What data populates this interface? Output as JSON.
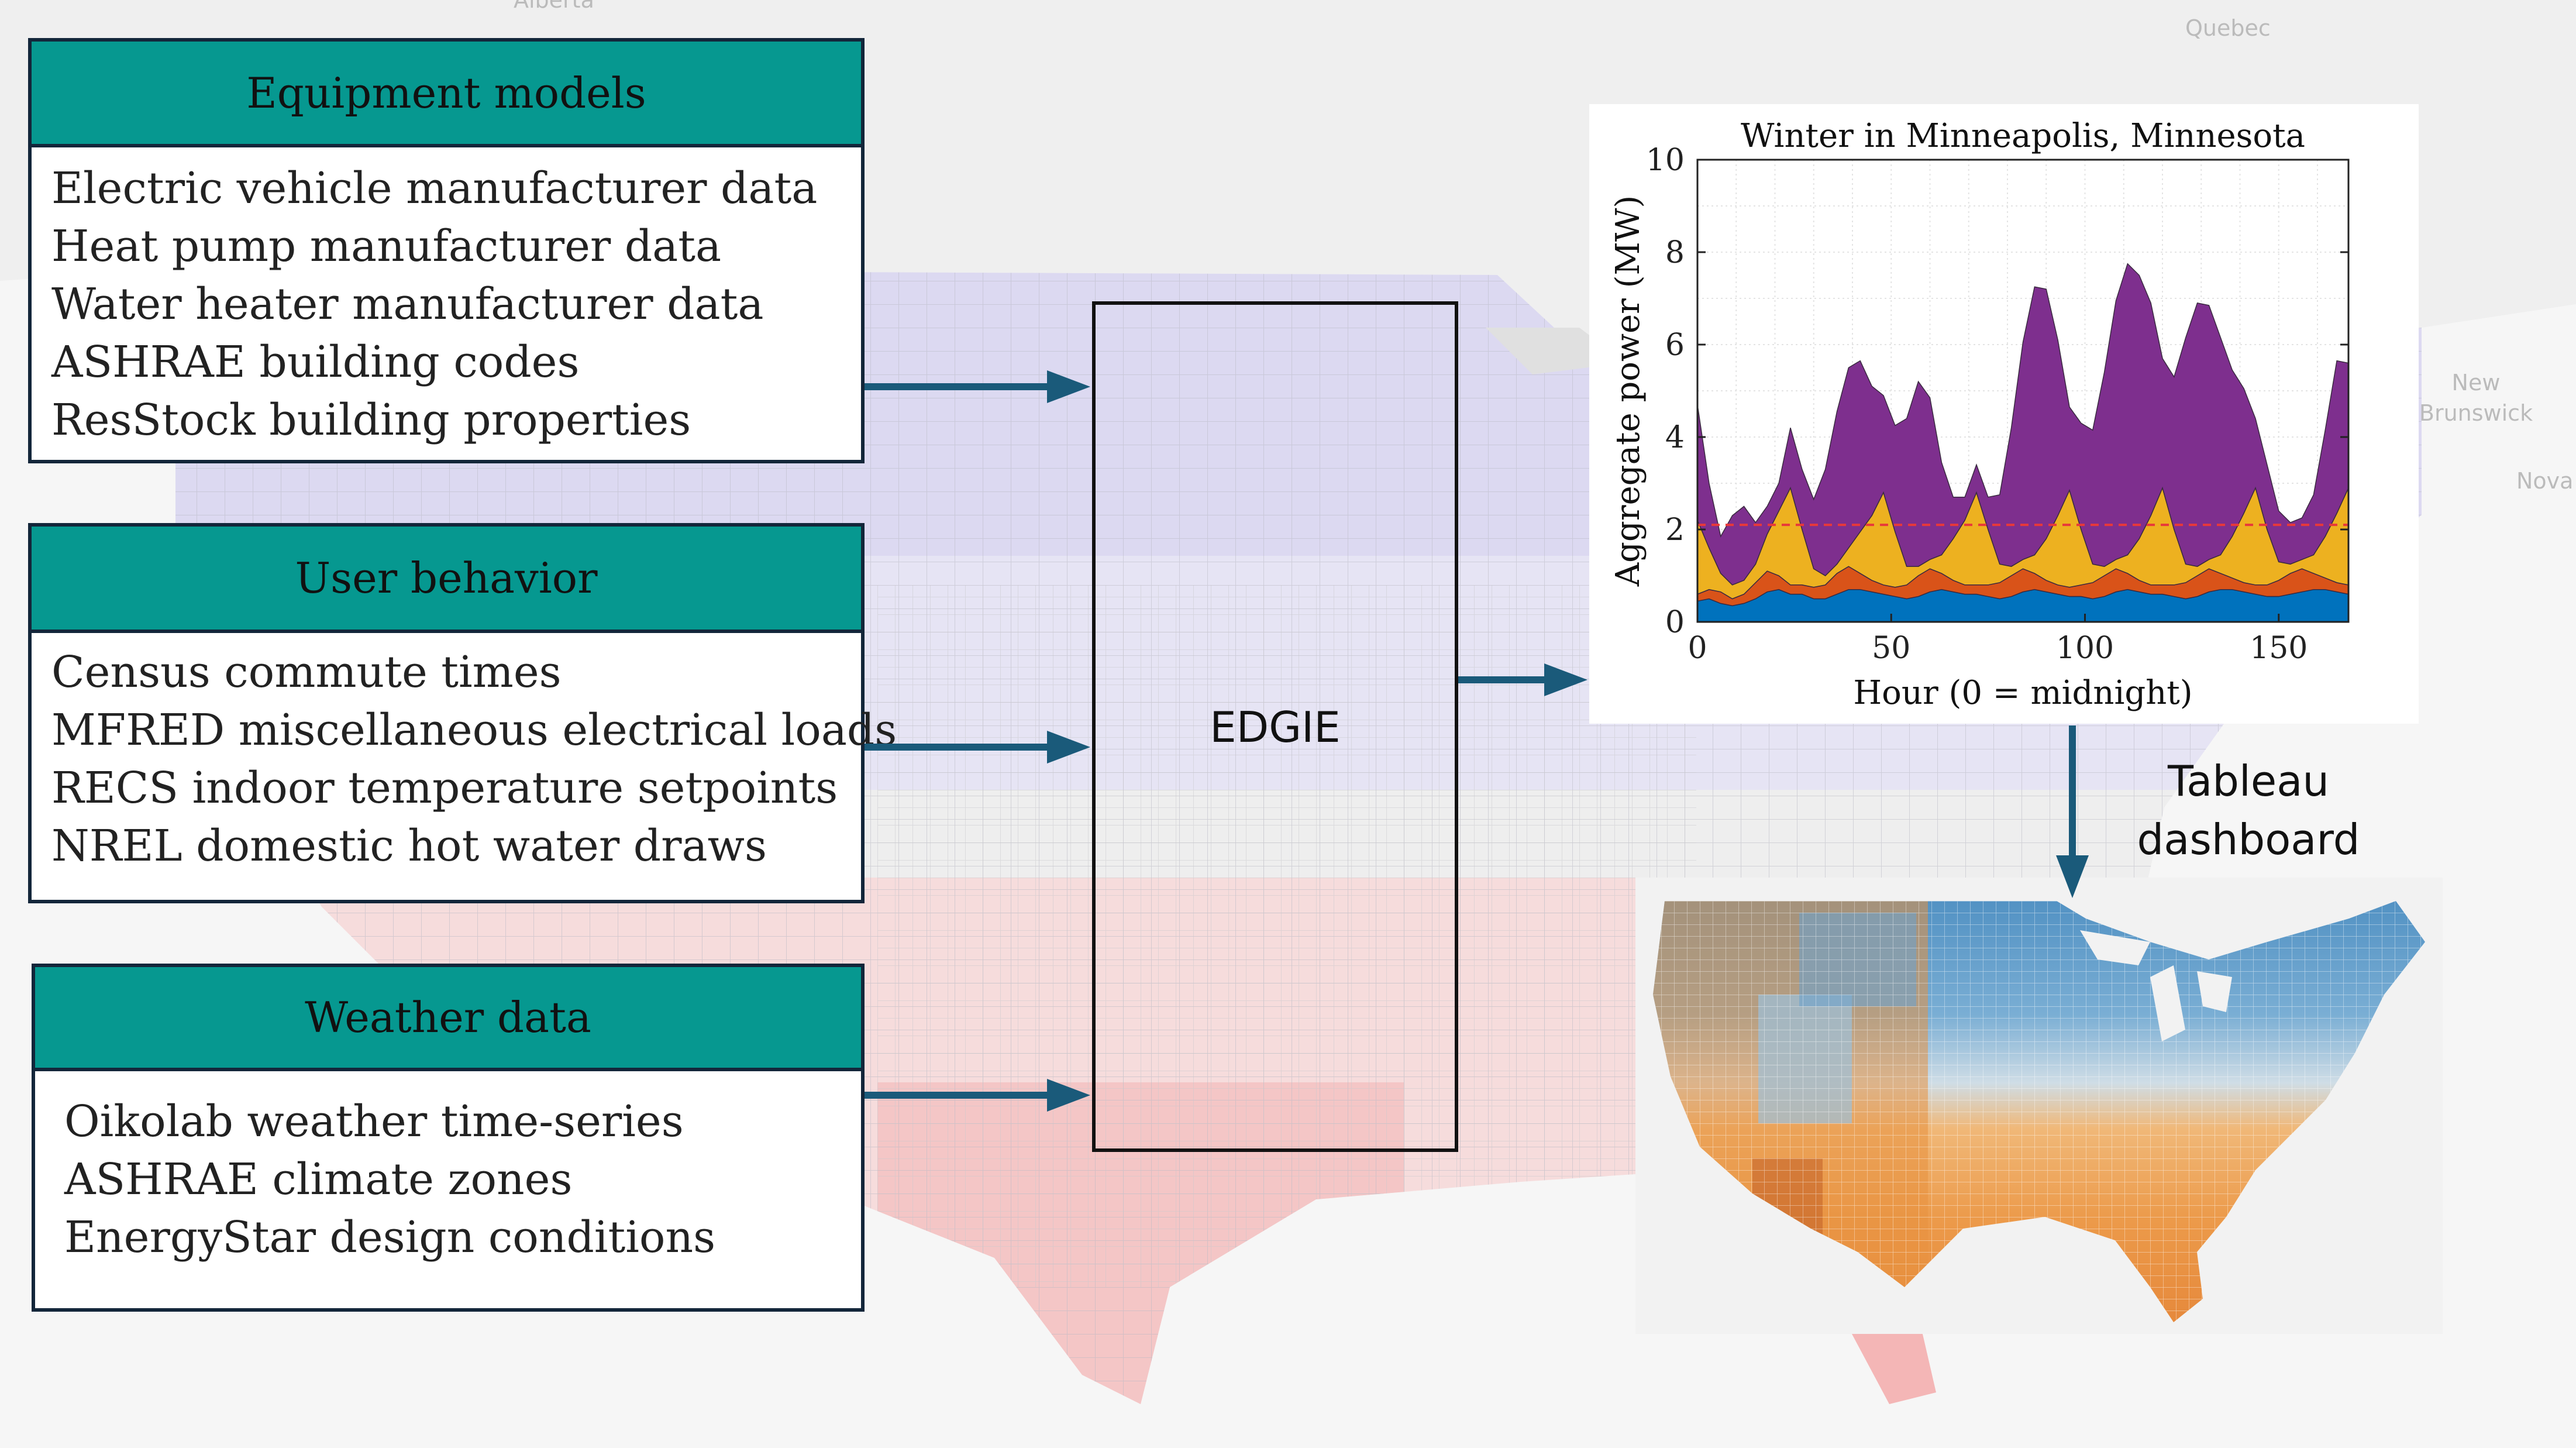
{
  "background_map": {
    "place_labels": [
      "Alberta",
      "Quebec",
      "New Brunswick",
      "Nova"
    ]
  },
  "boxes": {
    "equipment": {
      "header": "Equipment models",
      "items": [
        "Electric vehicle manufacturer data",
        "Heat pump manufacturer data",
        "Water heater manufacturer data",
        "ASHRAE building codes",
        "ResStock building properties"
      ]
    },
    "behavior": {
      "header": "User behavior",
      "items": [
        "Census commute times",
        "MFRED miscellaneous electrical loads",
        "RECS indoor temperature setpoints",
        "NREL domestic hot water draws"
      ]
    },
    "weather": {
      "header": "Weather data",
      "items": [
        "Oikolab weather time-series",
        "ASHRAE climate zones",
        "EnergyStar design conditions"
      ]
    }
  },
  "center": {
    "label": "EDGIE"
  },
  "tableau": {
    "label_line1": "Tableau",
    "label_line2": "dashboard"
  },
  "colors": {
    "header_teal": "#069890",
    "box_border": "#13263a",
    "arrow": "#1a5a7a",
    "series_base": "#0072bd",
    "series_2": "#d95319",
    "series_3": "#edb120",
    "series_4": "#7e2f8e",
    "threshold": "#e8393a"
  },
  "chart_data": {
    "type": "area",
    "title": "Winter in Minneapolis, Minnesota",
    "xlabel": "Hour (0 = midnight)",
    "ylabel": "Aggregate power (MW)",
    "xlim": [
      0,
      168
    ],
    "ylim": [
      0,
      10
    ],
    "xticks": [
      0,
      50,
      100,
      150
    ],
    "yticks": [
      0,
      2,
      4,
      6,
      8,
      10
    ],
    "grid": true,
    "stacked": true,
    "threshold_line": 2.1,
    "x": [
      0,
      3,
      6,
      9,
      12,
      15,
      18,
      21,
      24,
      27,
      30,
      33,
      36,
      39,
      42,
      45,
      48,
      51,
      54,
      57,
      60,
      63,
      66,
      69,
      72,
      75,
      78,
      81,
      84,
      87,
      90,
      93,
      96,
      99,
      102,
      105,
      108,
      111,
      114,
      117,
      120,
      123,
      126,
      129,
      132,
      135,
      138,
      141,
      144,
      147,
      150,
      153,
      156,
      159,
      162,
      165,
      168
    ],
    "series": [
      {
        "values": [
          0.45,
          0.5,
          0.4,
          0.35,
          0.4,
          0.5,
          0.65,
          0.7,
          0.6,
          0.6,
          0.5,
          0.5,
          0.6,
          0.7,
          0.7,
          0.65,
          0.6,
          0.55,
          0.5,
          0.55,
          0.65,
          0.7,
          0.65,
          0.6,
          0.6,
          0.55,
          0.5,
          0.55,
          0.65,
          0.7,
          0.65,
          0.6,
          0.55,
          0.55,
          0.5,
          0.55,
          0.65,
          0.7,
          0.65,
          0.6,
          0.6,
          0.55,
          0.5,
          0.55,
          0.65,
          0.7,
          0.7,
          0.65,
          0.6,
          0.55,
          0.55,
          0.6,
          0.65,
          0.7,
          0.7,
          0.65,
          0.6
        ]
      },
      {
        "values": [
          0.15,
          0.2,
          0.25,
          0.15,
          0.2,
          0.35,
          0.45,
          0.3,
          0.2,
          0.2,
          0.25,
          0.3,
          0.45,
          0.5,
          0.35,
          0.25,
          0.2,
          0.2,
          0.3,
          0.45,
          0.5,
          0.35,
          0.25,
          0.2,
          0.2,
          0.25,
          0.35,
          0.45,
          0.5,
          0.35,
          0.25,
          0.2,
          0.2,
          0.25,
          0.35,
          0.45,
          0.5,
          0.35,
          0.25,
          0.2,
          0.2,
          0.25,
          0.35,
          0.45,
          0.5,
          0.35,
          0.25,
          0.2,
          0.2,
          0.25,
          0.35,
          0.45,
          0.5,
          0.35,
          0.25,
          0.2,
          0.2
        ]
      },
      {
        "values": [
          1.6,
          0.9,
          0.4,
          0.3,
          0.3,
          0.4,
          0.8,
          1.4,
          2.1,
          1.2,
          0.4,
          0.2,
          0.2,
          0.4,
          0.9,
          1.4,
          2.0,
          1.2,
          0.4,
          0.2,
          0.2,
          0.4,
          0.9,
          1.4,
          2.0,
          1.2,
          0.4,
          0.2,
          0.2,
          0.4,
          0.9,
          1.5,
          2.1,
          1.2,
          0.4,
          0.2,
          0.2,
          0.4,
          0.9,
          1.5,
          2.1,
          1.2,
          0.4,
          0.2,
          0.2,
          0.4,
          0.9,
          1.5,
          2.1,
          1.2,
          0.4,
          0.2,
          0.2,
          0.4,
          0.9,
          1.5,
          2.1
        ]
      },
      {
        "values": [
          2.5,
          1.4,
          0.8,
          1.5,
          1.6,
          0.9,
          0.6,
          0.6,
          1.3,
          1.3,
          1.5,
          2.3,
          3.3,
          3.9,
          3.7,
          2.8,
          2.1,
          2.3,
          3.2,
          4.0,
          3.5,
          2.0,
          0.9,
          0.5,
          0.6,
          0.7,
          1.5,
          3.0,
          4.7,
          5.8,
          5.4,
          3.8,
          1.8,
          2.3,
          2.9,
          4.2,
          5.6,
          6.3,
          5.7,
          4.6,
          2.8,
          3.3,
          4.9,
          5.7,
          5.5,
          4.7,
          3.6,
          2.7,
          1.5,
          1.4,
          1.1,
          0.9,
          0.9,
          1.3,
          2.3,
          3.3,
          2.7
        ]
      }
    ]
  }
}
